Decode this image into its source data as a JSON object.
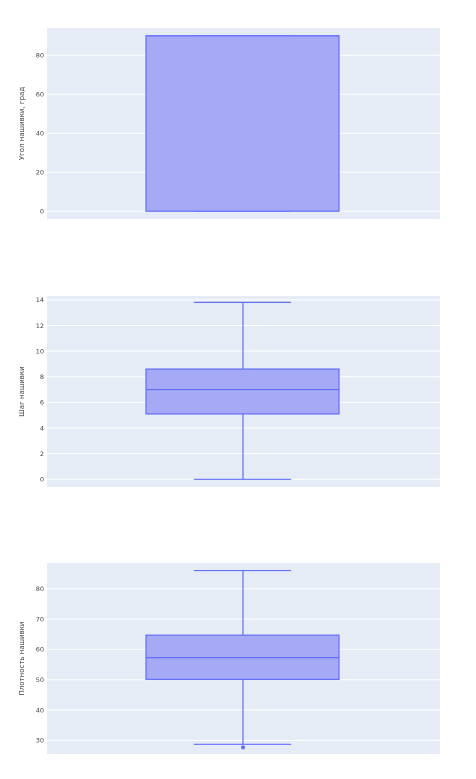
{
  "chart_data": [
    {
      "type": "box",
      "ylabel": "Угол нашивки, град",
      "ylim": [
        -4,
        94
      ],
      "yticks": [
        0,
        20,
        40,
        60,
        80
      ],
      "series": [
        {
          "values": {
            "min": 0,
            "q1": 0,
            "median": 90,
            "q3": 90,
            "max": 90,
            "outliers": []
          }
        }
      ],
      "grid": true,
      "legend": false,
      "colors": {
        "plot_bg": "#e5ecf6",
        "box_fill": "#a5a9f6",
        "box_line": "#636efa"
      }
    },
    {
      "type": "box",
      "ylabel": "Шаг нашивки",
      "ylim": [
        -0.6,
        14.3
      ],
      "yticks": [
        0,
        2,
        4,
        6,
        8,
        10,
        12,
        14
      ],
      "series": [
        {
          "values": {
            "min": 0,
            "q1": 5.1,
            "median": 7.0,
            "q3": 8.6,
            "max": 13.8,
            "outliers": []
          }
        }
      ],
      "grid": true,
      "legend": false,
      "colors": {
        "plot_bg": "#e5ecf6",
        "box_fill": "#a5a9f6",
        "box_line": "#636efa"
      }
    },
    {
      "type": "box",
      "ylabel": "Плотность нашивки",
      "ylim": [
        25.5,
        88.5
      ],
      "yticks": [
        30,
        40,
        50,
        60,
        70,
        80
      ],
      "series": [
        {
          "values": {
            "min": 28.7,
            "q1": 50.1,
            "median": 57.3,
            "q3": 64.7,
            "max": 86.0,
            "outliers": [
              27.7
            ]
          }
        }
      ],
      "grid": true,
      "legend": false,
      "colors": {
        "plot_bg": "#e5ecf6",
        "box_fill": "#a5a9f6",
        "box_line": "#636efa"
      }
    }
  ]
}
